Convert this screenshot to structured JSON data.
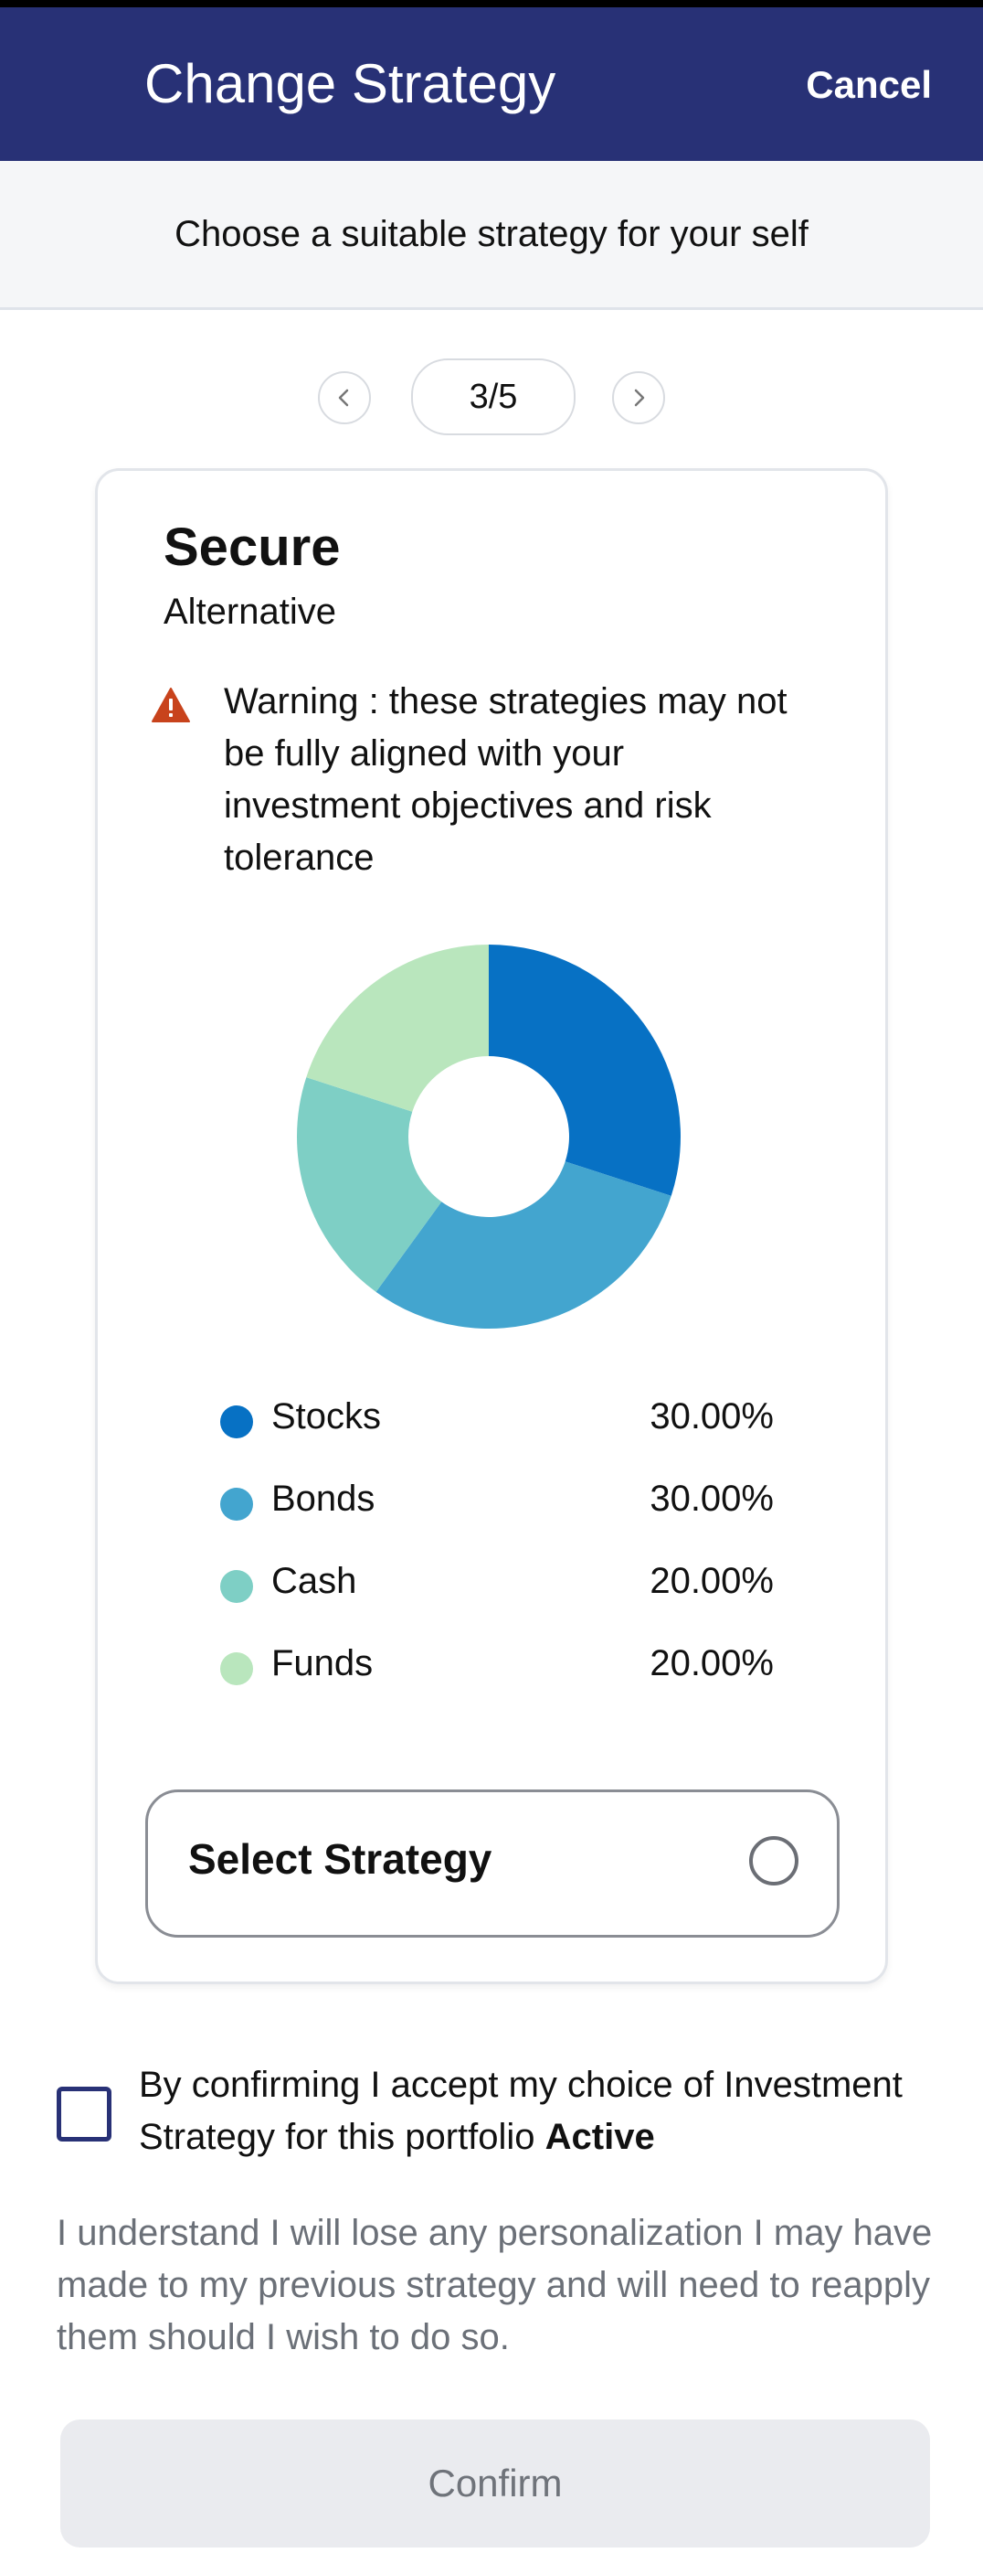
{
  "header": {
    "title": "Change Strategy",
    "cancel_label": "Cancel",
    "background": "#283176"
  },
  "subheader": {
    "text": "Choose a suitable strategy for your self"
  },
  "pager": {
    "label": "3/5",
    "prev_icon": "chevron-left-icon",
    "next_icon": "chevron-right-icon"
  },
  "card": {
    "title": "Secure",
    "subtitle": "Alternative",
    "warning": {
      "icon": "warning-triangle-icon",
      "color": "#c8431c",
      "text": "Warning : these strategies may not be fully aligned with your investment objectives and risk tolerance"
    },
    "select_label": "Select Strategy"
  },
  "chart_data": {
    "type": "pie",
    "variant": "donut",
    "title": "",
    "categories": [
      "Stocks",
      "Bonds",
      "Cash",
      "Funds"
    ],
    "values": [
      30.0,
      30.0,
      20.0,
      20.0
    ],
    "value_labels": [
      "30.00%",
      "30.00%",
      "20.00%",
      "20.00%"
    ],
    "colors": [
      "#0771c4",
      "#43a5cf",
      "#7ecfc5",
      "#b9e6bd"
    ],
    "legend": "bottom"
  },
  "confirm": {
    "checkbox_text": "By confirming I accept my choice of Investment Strategy for this portfolio",
    "portfolio_name": "Active",
    "disclaimer": "I understand I will lose any personalization I may have made to my previous strategy and will need to reapply them should I wish to do so.",
    "button_label": "Confirm"
  }
}
